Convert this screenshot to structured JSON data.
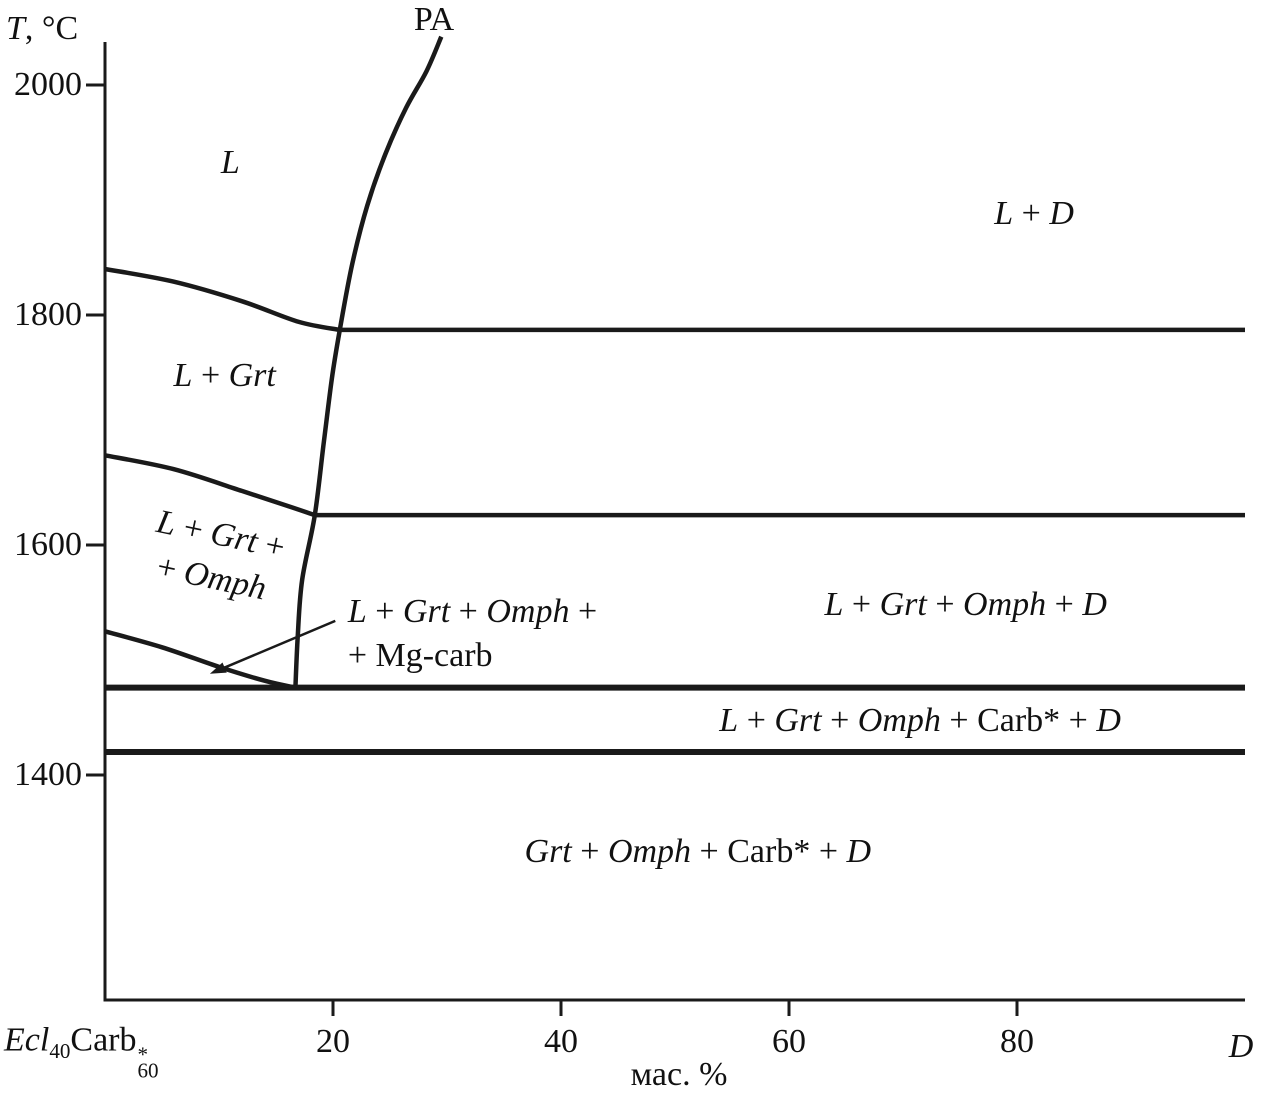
{
  "chart_data": {
    "type": "line",
    "diagram_kind": "phase-diagram",
    "title": "",
    "ylabel": {
      "var": "T",
      "unit": ", °C"
    },
    "xlabel": "мас. %",
    "pa_label": "PA",
    "x_axis": {
      "min": 0,
      "max": 100,
      "ticks": [
        20,
        40,
        60,
        80
      ],
      "left_end_label": {
        "pre": "Ecl",
        "pre_sub": "40",
        "mid": "Carb",
        "sup": "*",
        "sub": "60"
      },
      "right_end_label": "D"
    },
    "y_axis": {
      "min": 1204,
      "max": 2040,
      "ticks": [
        2000,
        1800,
        1600,
        1400
      ]
    },
    "boundaries": [
      {
        "name": "pa-univariant-curve",
        "width": 4.5,
        "points": [
          [
            16.7,
            1476
          ],
          [
            16.9,
            1520
          ],
          [
            17.3,
            1570
          ],
          [
            18.4,
            1626
          ],
          [
            19.2,
            1690
          ],
          [
            19.9,
            1745
          ],
          [
            20.6,
            1787
          ],
          [
            21.7,
            1845
          ],
          [
            23.0,
            1895
          ],
          [
            24.6,
            1940
          ],
          [
            26.4,
            1980
          ],
          [
            28.2,
            2012
          ],
          [
            29.5,
            2042
          ]
        ]
      },
      {
        "name": "liquidus-l-grt",
        "width": 4.5,
        "points": [
          [
            0,
            1840
          ],
          [
            6,
            1829
          ],
          [
            12,
            1812
          ],
          [
            17,
            1794
          ],
          [
            20.6,
            1787
          ]
        ]
      },
      {
        "name": "l-grt-omph-upper",
        "width": 4.5,
        "points": [
          [
            0,
            1678
          ],
          [
            6,
            1666
          ],
          [
            12,
            1647
          ],
          [
            16,
            1634
          ],
          [
            18.4,
            1626
          ]
        ]
      },
      {
        "name": "l-grt-omph-mgcarb",
        "width": 4.5,
        "points": [
          [
            0,
            1525
          ],
          [
            5,
            1511
          ],
          [
            10,
            1494
          ],
          [
            14,
            1482
          ],
          [
            16.7,
            1476
          ]
        ]
      },
      {
        "name": "isotherm-1790",
        "width": 4.5,
        "points": [
          [
            20.6,
            1787
          ],
          [
            100,
            1787
          ]
        ]
      },
      {
        "name": "isotherm-1625",
        "width": 4.5,
        "points": [
          [
            18.4,
            1626
          ],
          [
            100,
            1626
          ]
        ]
      },
      {
        "name": "solidus-1475",
        "width": 6,
        "points": [
          [
            0,
            1476
          ],
          [
            100,
            1476
          ]
        ]
      },
      {
        "name": "isotherm-1420",
        "width": 6,
        "points": [
          [
            0,
            1420
          ],
          [
            100,
            1420
          ]
        ]
      }
    ],
    "region_labels": [
      {
        "name": "region-label-l",
        "x": 11,
        "t": 1932,
        "lines": [
          [
            {
              "t": "L",
              "i": 1
            }
          ]
        ]
      },
      {
        "name": "region-label-l-d",
        "x": 81.5,
        "t": 1888,
        "lines": [
          [
            {
              "t": "L",
              "i": 1
            },
            {
              "t": " + ",
              "i": 0
            },
            {
              "t": "D",
              "i": 1
            }
          ]
        ]
      },
      {
        "name": "region-label-l-grt",
        "x": 10.5,
        "t": 1747,
        "lines": [
          [
            {
              "t": "L",
              "i": 1
            },
            {
              "t": " + ",
              "i": 0
            },
            {
              "t": "Grt",
              "i": 1
            }
          ]
        ]
      },
      {
        "name": "region-label-l-grt-omph",
        "x": 9.7,
        "t": 1590,
        "rotate": 12,
        "lines": [
          [
            {
              "t": "L",
              "i": 1
            },
            {
              "t": " + ",
              "i": 0
            },
            {
              "t": "Grt",
              "i": 1
            },
            {
              "t": " +",
              "i": 0
            }
          ],
          [
            {
              "t": "+ ",
              "i": 0
            },
            {
              "t": "Omph",
              "i": 1
            }
          ]
        ]
      },
      {
        "name": "region-label-l-grt-omph-d",
        "x": 75.5,
        "t": 1548,
        "lines": [
          [
            {
              "t": "L",
              "i": 1
            },
            {
              "t": " + ",
              "i": 0
            },
            {
              "t": "Grt",
              "i": 1
            },
            {
              "t": " + ",
              "i": 0
            },
            {
              "t": "Omph",
              "i": 1
            },
            {
              "t": " + ",
              "i": 0
            },
            {
              "t": "D",
              "i": 1
            }
          ]
        ]
      },
      {
        "name": "region-label-l-grt-omph-carb-d",
        "x": 71.5,
        "t": 1447,
        "lines": [
          [
            {
              "t": "L",
              "i": 1
            },
            {
              "t": " + ",
              "i": 0
            },
            {
              "t": "Grt",
              "i": 1
            },
            {
              "t": " + ",
              "i": 0
            },
            {
              "t": "Omph",
              "i": 1
            },
            {
              "t": " + Carb* + ",
              "i": 0
            },
            {
              "t": "D",
              "i": 1
            }
          ]
        ]
      },
      {
        "name": "region-label-grt-omph-carb-d",
        "x": 52,
        "t": 1333,
        "lines": [
          [
            {
              "t": "Grt",
              "i": 1
            },
            {
              "t": " + ",
              "i": 0
            },
            {
              "t": "Omph",
              "i": 1
            },
            {
              "t": " + Carb* + ",
              "i": 0
            },
            {
              "t": "D",
              "i": 1
            }
          ]
        ]
      },
      {
        "name": "annotation-label-mg-carb",
        "x": 21.3,
        "t": 1523,
        "align": "left",
        "lines": [
          [
            {
              "t": "L",
              "i": 1
            },
            {
              "t": " + ",
              "i": 0
            },
            {
              "t": "Grt",
              "i": 1
            },
            {
              "t": " + ",
              "i": 0
            },
            {
              "t": "Omph",
              "i": 1
            },
            {
              "t": " +",
              "i": 0
            }
          ],
          [
            {
              "t": "+ Mg-carb",
              "i": 0
            }
          ]
        ]
      }
    ],
    "arrow": {
      "from": [
        20.2,
        1534
      ],
      "to": [
        9.2,
        1488
      ]
    },
    "colors": {
      "line": "#1a1a1a",
      "text": "#111111",
      "background": "#ffffff"
    }
  }
}
